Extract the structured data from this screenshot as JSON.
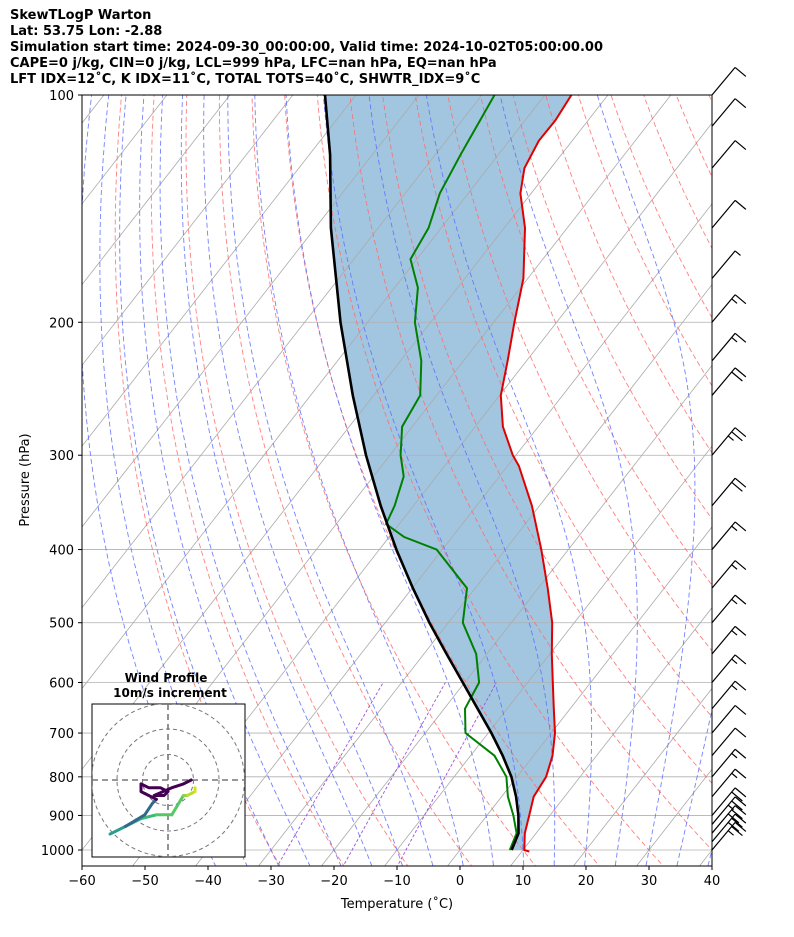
{
  "header": {
    "line1": "SkewTLogP Warton",
    "line2": "Lat: 53.75   Lon: -2.88",
    "line3": "Simulation start time: 2024-09-30_00:00:00, Valid time: 2024-10-02T05:00:00.00",
    "line4": "CAPE=0 j/kg, CIN=0 j/kg, LCL=999 hPa, LFC=nan hPa, EQ=nan hPa",
    "line5": "LFT IDX=12˚C, K IDX=11˚C, TOTAL TOTS=40˚C, SHWTR_IDX=9˚C"
  },
  "chart_data": {
    "type": "line",
    "subtype": "skew-t log-p",
    "xlabel": "Temperature (˚C)",
    "ylabel": "Pressure (hPa)",
    "xlim": [
      -60,
      40
    ],
    "ylim": [
      1050,
      100
    ],
    "y_scale": "log",
    "x_ticks": [
      -60,
      -50,
      -40,
      -30,
      -20,
      -10,
      0,
      10,
      20,
      30,
      40
    ],
    "x_tick_labels": [
      "−60",
      "−50",
      "−40",
      "−30",
      "−20",
      "−10",
      "0",
      "10",
      "20",
      "30",
      "40"
    ],
    "y_ticks": [
      1000,
      900,
      800,
      700,
      600,
      500,
      400,
      300,
      200,
      100
    ],
    "y_tick_labels": [
      "1000",
      "900",
      "800",
      "700",
      "600",
      "500",
      "400",
      "300",
      "200",
      "100"
    ],
    "grid": true,
    "colors": {
      "temperature": "#e00000",
      "dewpoint": "#008000",
      "parcel": "#000000",
      "shading": "#a3c6e0",
      "dry_adiabats": "#ff6a6a",
      "moist_adiabats": "#5a6cff",
      "mixing_ratio": "#9a55d6",
      "isotherms": "#aaaaaa"
    },
    "series": [
      {
        "role": "temperature",
        "points": [
          [
            1005,
            11.2
          ],
          [
            1000,
            10.2
          ],
          [
            950,
            8.2
          ],
          [
            900,
            6.7
          ],
          [
            850,
            5.1
          ],
          [
            800,
            4.6
          ],
          [
            750,
            3.0
          ],
          [
            700,
            0.6
          ],
          [
            650,
            -2.6
          ],
          [
            600,
            -6.0
          ],
          [
            550,
            -9.7
          ],
          [
            500,
            -13.5
          ],
          [
            450,
            -18.5
          ],
          [
            400,
            -24.3
          ],
          [
            350,
            -31.2
          ],
          [
            310,
            -38.2
          ],
          [
            300,
            -40.5
          ],
          [
            275,
            -45.6
          ],
          [
            250,
            -49.8
          ],
          [
            225,
            -53.0
          ],
          [
            200,
            -56.7
          ],
          [
            175,
            -60.7
          ],
          [
            150,
            -66.7
          ],
          [
            135,
            -71.7
          ],
          [
            125,
            -74.2
          ],
          [
            115,
            -75.3
          ],
          [
            108,
            -75.2
          ],
          [
            100,
            -75.8
          ]
        ]
      },
      {
        "role": "dewpoint",
        "points": [
          [
            1000,
            7.9
          ],
          [
            950,
            6.9
          ],
          [
            900,
            4.2
          ],
          [
            850,
            1.0
          ],
          [
            800,
            -1.7
          ],
          [
            750,
            -6.2
          ],
          [
            700,
            -13.6
          ],
          [
            650,
            -16.7
          ],
          [
            600,
            -17.7
          ],
          [
            550,
            -21.7
          ],
          [
            500,
            -27.7
          ],
          [
            450,
            -31.3
          ],
          [
            400,
            -40.9
          ],
          [
            385,
            -47.6
          ],
          [
            370,
            -52.1
          ],
          [
            350,
            -53.0
          ],
          [
            320,
            -55.2
          ],
          [
            300,
            -58.3
          ],
          [
            275,
            -61.6
          ],
          [
            250,
            -62.6
          ],
          [
            225,
            -66.7
          ],
          [
            200,
            -72.5
          ],
          [
            180,
            -76.3
          ],
          [
            165,
            -81.0
          ],
          [
            150,
            -82.0
          ],
          [
            135,
            -84.5
          ],
          [
            120,
            -86.0
          ],
          [
            100,
            -88.0
          ]
        ]
      },
      {
        "role": "parcel",
        "points": [
          [
            1000,
            8.2
          ],
          [
            950,
            7.2
          ],
          [
            900,
            5.0
          ],
          [
            850,
            2.3
          ],
          [
            800,
            -0.9
          ],
          [
            750,
            -4.9
          ],
          [
            700,
            -9.5
          ],
          [
            650,
            -14.7
          ],
          [
            600,
            -20.3
          ],
          [
            550,
            -26.4
          ],
          [
            500,
            -33.0
          ],
          [
            450,
            -39.9
          ],
          [
            400,
            -47.3
          ],
          [
            350,
            -55.2
          ],
          [
            300,
            -63.8
          ],
          [
            250,
            -73.3
          ],
          [
            200,
            -84.3
          ],
          [
            150,
            -97.5
          ],
          [
            120,
            -106.7
          ],
          [
            100,
            -114.9
          ]
        ]
      }
    ],
    "wind_barbs": [
      {
        "p": 1000,
        "kt": 25
      },
      {
        "p": 975,
        "kt": 30
      },
      {
        "p": 950,
        "kt": 30
      },
      {
        "p": 925,
        "kt": 25
      },
      {
        "p": 900,
        "kt": 20
      },
      {
        "p": 850,
        "kt": 15
      },
      {
        "p": 800,
        "kt": 15
      },
      {
        "p": 750,
        "kt": 10
      },
      {
        "p": 700,
        "kt": 10
      },
      {
        "p": 650,
        "kt": 15
      },
      {
        "p": 600,
        "kt": 15
      },
      {
        "p": 550,
        "kt": 15
      },
      {
        "p": 500,
        "kt": 15
      },
      {
        "p": 450,
        "kt": 15
      },
      {
        "p": 400,
        "kt": 15
      },
      {
        "p": 350,
        "kt": 20
      },
      {
        "p": 300,
        "kt": 25
      },
      {
        "p": 250,
        "kt": 20
      },
      {
        "p": 225,
        "kt": 15
      },
      {
        "p": 200,
        "kt": 15
      },
      {
        "p": 175,
        "kt": 5
      },
      {
        "p": 150,
        "kt": 10
      },
      {
        "p": 125,
        "kt": 10
      },
      {
        "p": 110,
        "kt": 10
      },
      {
        "p": 100,
        "kt": 10
      }
    ],
    "inset": {
      "title": "Wind Profile",
      "subtitle": "10m/s increment",
      "hodograph_points": [
        [
          -7.5,
          -7
        ],
        [
          -5.5,
          -6
        ],
        [
          -3.5,
          -5
        ],
        [
          -1.5,
          -4.5
        ],
        [
          0.5,
          -4.5
        ],
        [
          2,
          -2
        ],
        [
          2.5,
          -2
        ],
        [
          3.5,
          -1.5
        ],
        [
          3.5,
          -1
        ]
      ],
      "hodograph_low_points": [
        [
          -5.5,
          -6
        ],
        [
          -3,
          -4.5
        ],
        [
          -2,
          -3
        ],
        [
          -1.5,
          -2.5
        ]
      ],
      "hodograph_loop": [
        [
          -1.5,
          -2.5
        ],
        [
          -2.5,
          -2
        ],
        [
          -3.5,
          -1.5
        ],
        [
          -3.5,
          -0.5
        ],
        [
          -2.5,
          -1
        ],
        [
          -1,
          -1
        ],
        [
          0,
          -1.5
        ],
        [
          -0.5,
          -2
        ],
        [
          -1.8,
          -2
        ],
        [
          0.5,
          -1
        ],
        [
          2,
          -0.5
        ],
        [
          3,
          0
        ]
      ]
    }
  }
}
